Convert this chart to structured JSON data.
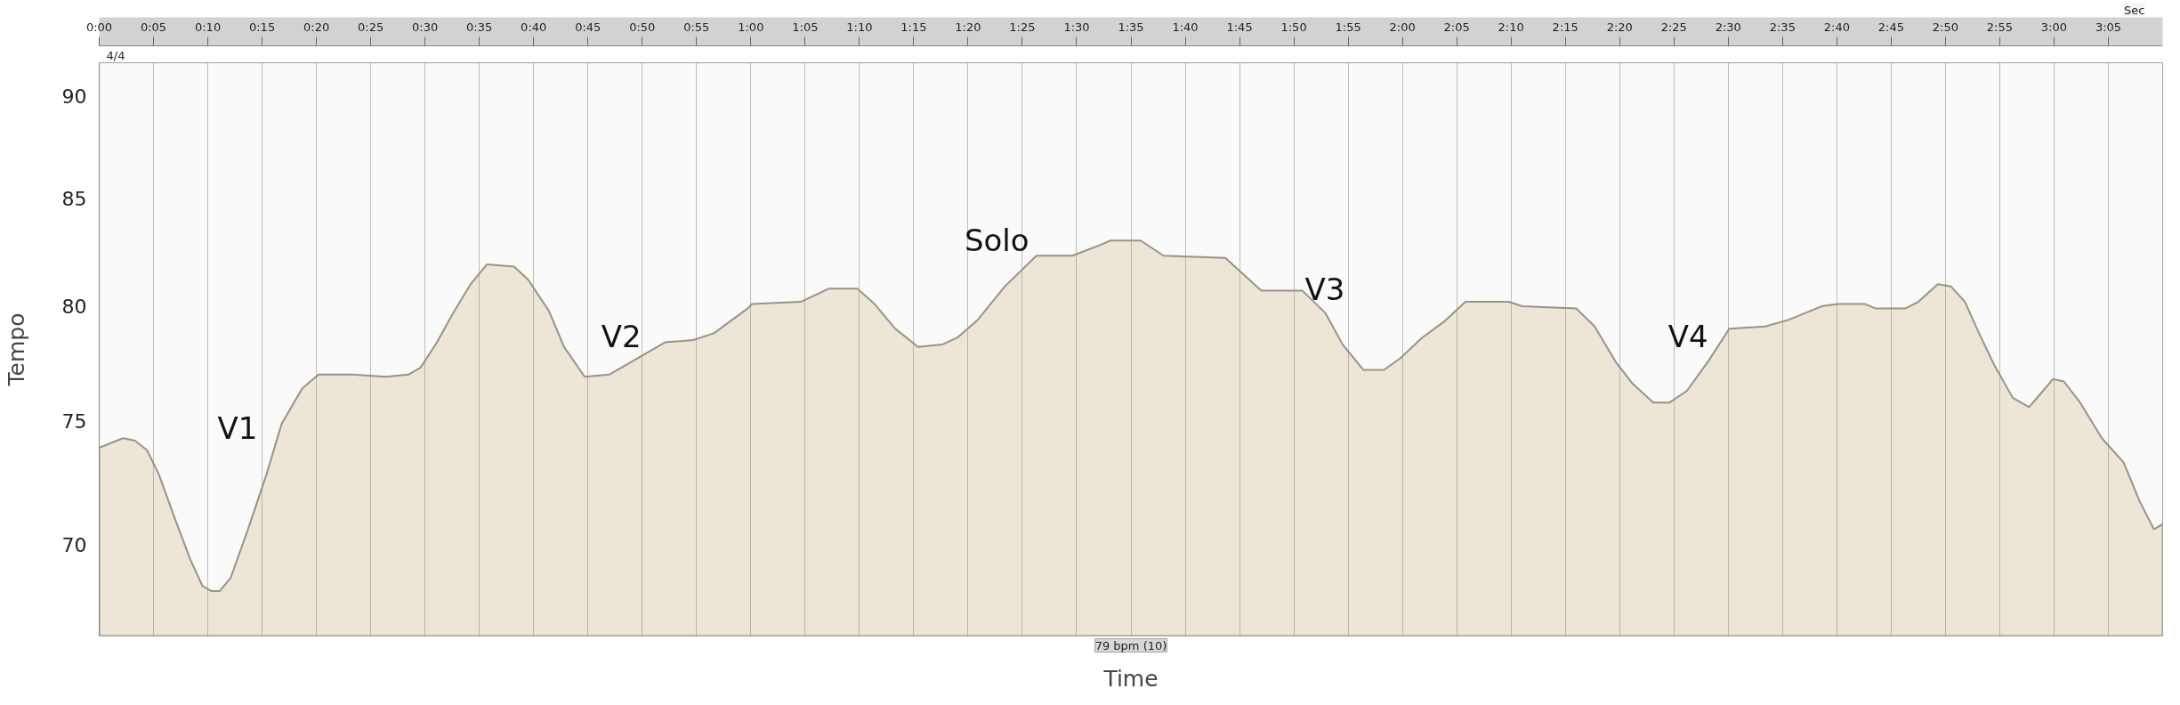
{
  "chart_data": {
    "type": "area",
    "xlabel": "Time",
    "ylabel": "Tempo",
    "x": [
      0,
      2.2,
      3.3,
      4.4,
      5.5,
      6.9,
      8.4,
      9.5,
      10.3,
      11.1,
      12.1,
      13.7,
      15.4,
      16.8,
      18.7,
      20.2,
      23.3,
      26.4,
      28.5,
      29.6,
      31.1,
      32.6,
      34.2,
      35.7,
      38.2,
      39.5,
      41.4,
      42.8,
      44.7,
      47.0,
      50.3,
      52.1,
      54.7,
      56.6,
      59.7,
      60.1,
      64.6,
      67.2,
      69.8,
      71.4,
      73.3,
      75.4,
      77.6,
      79.0,
      80.9,
      83.4,
      86.3,
      89.6,
      92.2,
      93.1,
      95.9,
      98.0,
      103.7,
      107.0,
      110.8,
      112.9,
      114.5,
      116.4,
      118.3,
      119.8,
      121.8,
      123.8,
      125.8,
      129.8,
      131.0,
      136.0,
      137.7,
      139.7,
      141.2,
      143.1,
      144.6,
      146.2,
      148.2,
      150.1,
      153.4,
      155.6,
      158.6,
      160.1,
      162.6,
      163.6,
      166.3,
      167.5,
      169.3,
      170.5,
      171.8,
      173.0,
      174.5,
      176.2,
      177.7,
      179.9,
      180.9,
      182.4,
      184.4,
      186.4,
      187.9,
      189.2,
      190.0
    ],
    "values": [
      73.9,
      74.3,
      74.2,
      73.8,
      72.8,
      71.1,
      69.4,
      68.4,
      68.2,
      68.2,
      68.7,
      70.6,
      72.8,
      74.9,
      76.4,
      77.0,
      77.0,
      76.9,
      77.0,
      77.3,
      78.4,
      79.7,
      81.0,
      81.9,
      81.8,
      81.2,
      79.8,
      78.2,
      76.9,
      77.0,
      77.9,
      78.4,
      78.5,
      78.8,
      79.9,
      80.1,
      80.2,
      80.8,
      80.8,
      80.1,
      79.0,
      78.2,
      78.3,
      78.6,
      79.4,
      80.9,
      82.3,
      82.3,
      82.8,
      83.0,
      83.0,
      82.3,
      82.2,
      80.7,
      80.7,
      79.7,
      78.3,
      77.2,
      77.2,
      77.7,
      78.6,
      79.3,
      80.2,
      80.2,
      80.0,
      79.9,
      79.1,
      77.5,
      76.6,
      75.8,
      75.8,
      76.3,
      77.6,
      79.0,
      79.1,
      79.4,
      80.0,
      80.1,
      80.1,
      79.9,
      79.9,
      80.2,
      81.0,
      80.9,
      80.2,
      78.9,
      77.4,
      76.0,
      75.6,
      76.8,
      76.7,
      75.8,
      74.3,
      73.3,
      71.7,
      70.6,
      70.8
    ],
    "color": "#ede6d6",
    "xlim": [
      0,
      190
    ],
    "ylim": [
      66.5,
      91.7
    ],
    "log": "y",
    "xticks": [
      {
        "value": 0,
        "label": "0:00"
      },
      {
        "value": 5,
        "label": "0:05"
      },
      {
        "value": 10,
        "label": "0:10"
      },
      {
        "value": 15,
        "label": "0:15"
      },
      {
        "value": 20,
        "label": "0:20"
      },
      {
        "value": 25,
        "label": "0:25"
      },
      {
        "value": 30,
        "label": "0:30"
      },
      {
        "value": 35,
        "label": "0:35"
      },
      {
        "value": 40,
        "label": "0:40"
      },
      {
        "value": 45,
        "label": "0:45"
      },
      {
        "value": 50,
        "label": "0:50"
      },
      {
        "value": 55,
        "label": "0:55"
      },
      {
        "value": 60,
        "label": "1:00"
      },
      {
        "value": 65,
        "label": "1:05"
      },
      {
        "value": 70,
        "label": "1:10"
      },
      {
        "value": 75,
        "label": "1:15"
      },
      {
        "value": 80,
        "label": "1:20"
      },
      {
        "value": 85,
        "label": "1:25"
      },
      {
        "value": 90,
        "label": "1:30"
      },
      {
        "value": 95,
        "label": "1:35"
      },
      {
        "value": 100,
        "label": "1:40"
      },
      {
        "value": 105,
        "label": "1:45"
      },
      {
        "value": 110,
        "label": "1:50"
      },
      {
        "value": 115,
        "label": "1:55"
      },
      {
        "value": 120,
        "label": "2:00"
      },
      {
        "value": 125,
        "label": "2:05"
      },
      {
        "value": 130,
        "label": "2:10"
      },
      {
        "value": 135,
        "label": "2:15"
      },
      {
        "value": 140,
        "label": "2:20"
      },
      {
        "value": 145,
        "label": "2:25"
      },
      {
        "value": 150,
        "label": "2:30"
      },
      {
        "value": 155,
        "label": "2:35"
      },
      {
        "value": 160,
        "label": "2:40"
      },
      {
        "value": 165,
        "label": "2:45"
      },
      {
        "value": 170,
        "label": "2:50"
      },
      {
        "value": 175,
        "label": "2:55"
      },
      {
        "value": 180,
        "label": "3:00"
      },
      {
        "value": 185,
        "label": "3:05"
      }
    ],
    "yticks": [
      70,
      75,
      80,
      85,
      90
    ],
    "grid": "x",
    "annotations": [
      "V1",
      "V2",
      "Solo",
      "V3",
      "V4",
      "4/4",
      "79 bpm (10)",
      "Sec"
    ]
  }
}
